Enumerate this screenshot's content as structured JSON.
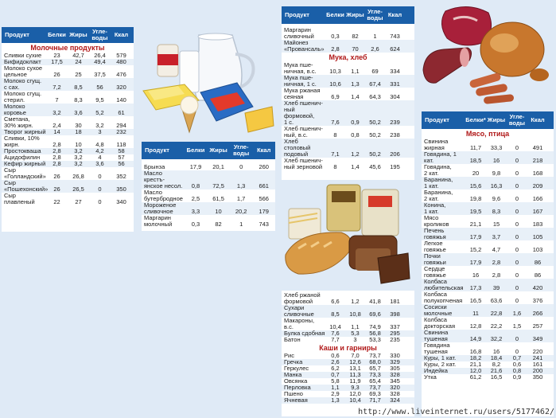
{
  "headers": {
    "product": "Продукт",
    "protein": "Белки",
    "fat": "Жиры",
    "carbs": "Угле-\nводы",
    "kcal": "Ккал",
    "protein_star": "Белки*"
  },
  "dairy": {
    "title": "Молочные продукты",
    "rows": [
      [
        "Сливки сухие",
        "23",
        "42,7",
        "26,4",
        "579"
      ],
      [
        "Бифидоклакт",
        "17,5",
        "24",
        "49,4",
        "480"
      ],
      [
        "Молоко сухое\nцельное",
        "26",
        "25",
        "37,5",
        "476"
      ],
      [
        "Молоко сгущ.\nс сах.",
        "7,2",
        "8,5",
        "56",
        "320"
      ],
      [
        "Молоко сгущ.\nстерил.",
        "7",
        "8,3",
        "9,5",
        "140"
      ],
      [
        "Молоко\nкоровье",
        "3,2",
        "3,6",
        "5,2",
        "61"
      ],
      [
        "Сметана,\n30% жирн.",
        "2,4",
        "30",
        "3,2",
        "294"
      ],
      [
        "Творог жирный",
        "14",
        "18",
        "3",
        "232"
      ],
      [
        "Сливки, 10%\nжирн.",
        "2,8",
        "10",
        "4,8",
        "118"
      ],
      [
        "Простокваша",
        "2,8",
        "3,2",
        "4,2",
        "58"
      ],
      [
        "Ацидофилин",
        "2,8",
        "3,2",
        "4",
        "57"
      ],
      [
        "Кефир жирный",
        "2,8",
        "3,2",
        "3,6",
        "56"
      ],
      [
        "Сыр\n«Голландский»",
        "26",
        "26,8",
        "0",
        "352"
      ],
      [
        "Сыр\n«Пошехонский»",
        "26",
        "26,5",
        "0",
        "350"
      ],
      [
        "Сыр\nплавленый",
        "22",
        "27",
        "0",
        "340"
      ]
    ]
  },
  "dairy2": {
    "rows": [
      [
        "Брынза",
        "17,9",
        "20,1",
        "0",
        "260"
      ],
      [
        "Масло крестъ-\nянское несол.",
        "0,8",
        "72,5",
        "1,3",
        "661"
      ],
      [
        "Масло\nбутербродное",
        "2,5",
        "61,5",
        "1,7",
        "566"
      ],
      [
        "Мороженое\nсливочное",
        "3,3",
        "10",
        "20,2",
        "179"
      ],
      [
        "Маргарин\nмолочный",
        "0,3",
        "82",
        "1",
        "743"
      ]
    ]
  },
  "bread": {
    "top_rows": [
      [
        "Маргарин\nсливочный",
        "0,3",
        "82",
        "1",
        "743"
      ],
      [
        "Майонез\n«Провансаль»",
        "2,8",
        "70",
        "2,6",
        "624"
      ]
    ],
    "title": "Мука, хлеб",
    "rows": [
      [
        "Мука пше-\nничная, в.с.",
        "10,3",
        "1,1",
        "69",
        "334"
      ],
      [
        "Мука пше-\nничная, 1 с.",
        "10,6",
        "1,3",
        "67,4",
        "331"
      ],
      [
        "Мука ржаная\nсеяная",
        "6,9",
        "1,4",
        "64,3",
        "304"
      ],
      [
        "Хлеб пшенич-\nный формовой,\n1 с.",
        "7,6",
        "0,9",
        "50,2",
        "239"
      ],
      [
        "Хлеб пшенич-\nный, в.с.",
        "8",
        "0,8",
        "50,2",
        "238"
      ],
      [
        "Хлеб столовый\nподовый",
        "7,1",
        "1,2",
        "50,2",
        "206"
      ],
      [
        "Хлеб пшенич-\nный зерновой",
        "8",
        "1,4",
        "45,6",
        "195"
      ]
    ],
    "bottom_rows": [
      [
        "Хлеб ржаной\nформовой",
        "6,6",
        "1,2",
        "41,8",
        "181"
      ],
      [
        "Сухари\nсливочные",
        "8,5",
        "10,8",
        "69,6",
        "398"
      ],
      [
        "Макароны, в.с.",
        "10,4",
        "1,1",
        "74,9",
        "337"
      ],
      [
        "Булка сдобная",
        "7,6",
        "5,3",
        "56,8",
        "295"
      ],
      [
        "Батон",
        "7,7",
        "3",
        "53,3",
        "235"
      ]
    ]
  },
  "grains": {
    "title": "Каши и гарниры",
    "rows": [
      [
        "Рис",
        "0,6",
        "7,0",
        "73,7",
        "330"
      ],
      [
        "Гречка",
        "2,6",
        "12,6",
        "68,0",
        "329"
      ],
      [
        "Геркулес",
        "6,2",
        "13,1",
        "65,7",
        "305"
      ],
      [
        "Манка",
        "0,7",
        "11,3",
        "73,3",
        "328"
      ],
      [
        "Овсянка",
        "5,8",
        "11,9",
        "65,4",
        "345"
      ],
      [
        "Перловка",
        "1,1",
        "9,3",
        "73,7",
        "320"
      ],
      [
        "Пшено",
        "2,9",
        "12,0",
        "69,3",
        "328"
      ],
      [
        "Ячневая",
        "1,3",
        "10,4",
        "71,7",
        "324"
      ]
    ]
  },
  "meat": {
    "title": "Мясо, птица",
    "rows": [
      [
        "Свинина\nжирная",
        "11,7",
        "33,3",
        "0",
        "491"
      ],
      [
        "Говядина, 1 кат.",
        "18,5",
        "16",
        "0",
        "218"
      ],
      [
        "Говядина,\n2 кат.",
        "20",
        "9,8",
        "0",
        "168"
      ],
      [
        "Баранина,\n1 кат.",
        "15,6",
        "16,3",
        "0",
        "209"
      ],
      [
        "Баранина,\n2 кат.",
        "19,8",
        "9,6",
        "0",
        "166"
      ],
      [
        "Конина,\n1 кат.",
        "19,5",
        "8,3",
        "0",
        "167"
      ],
      [
        "Мясо\nкроликов",
        "21,1",
        "15",
        "0",
        "183"
      ],
      [
        "Печень\nговяжья",
        "17,9",
        "3,7",
        "0",
        "105"
      ],
      [
        "Легкое\nговяжье",
        "15,2",
        "4,7",
        "0",
        "103"
      ],
      [
        "Почки\nговяжьи",
        "17,9",
        "2,8",
        "0",
        "86"
      ],
      [
        "Сердце\nговяжье",
        "16",
        "2,8",
        "0",
        "86"
      ],
      [
        "Колбаса\nлюбительская",
        "17,3",
        "39",
        "0",
        "420"
      ],
      [
        "Колбаса\nполукопченая",
        "16,5",
        "63,6",
        "0",
        "376"
      ],
      [
        "Сосиски\nмолочные",
        "11",
        "22,8",
        "1,6",
        "266"
      ],
      [
        "Колбаса\nдокторская",
        "12,8",
        "22,2",
        "1,5",
        "257"
      ],
      [
        "Свинина\nтушеная",
        "14,9",
        "32,2",
        "0",
        "349"
      ],
      [
        "Говядина\nтушеная",
        "16,8",
        "16",
        "0",
        "220"
      ],
      [
        "Куры, 1 кат.",
        "18,2",
        "18,4",
        "0,7",
        "241"
      ],
      [
        "Куры, 2 кат.",
        "21,1",
        "8,2",
        "0,6",
        "161"
      ],
      [
        "Индейка",
        "12,0",
        "21,6",
        "0,8",
        "200"
      ],
      [
        "Утка",
        "61,2",
        "16,5",
        "0,9",
        "350"
      ]
    ]
  },
  "watermark": "http://www.liveinternet.ru/users/5177462/"
}
